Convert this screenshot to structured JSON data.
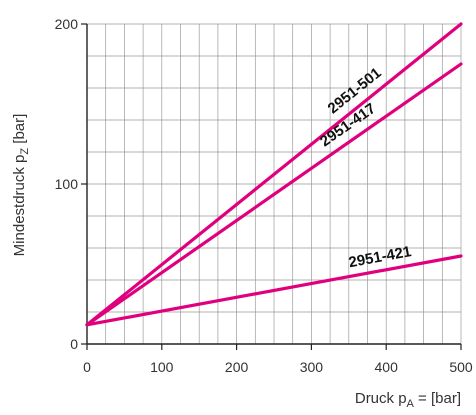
{
  "chart_data": {
    "type": "line",
    "xlabel": "Druck p_A = [bar]",
    "ylabel": "Mindestdruck p_Z [bar]",
    "xlabel_parts": [
      "Druck p",
      "A",
      " = [bar]"
    ],
    "ylabel_parts": [
      "Mindestdruck p",
      "Z",
      " [bar]"
    ],
    "xlim": [
      0,
      500
    ],
    "ylim": [
      0,
      200
    ],
    "x_ticks": [
      0,
      100,
      200,
      300,
      400,
      500
    ],
    "y_ticks": [
      0,
      100,
      200
    ],
    "grid": true,
    "grid_step_x": 25,
    "grid_step_y": 20,
    "line_color": "#e0007d",
    "series": [
      {
        "name": "2951-501",
        "x": [
          0,
          500
        ],
        "y": [
          12,
          200
        ]
      },
      {
        "name": "2951-417",
        "x": [
          0,
          500
        ],
        "y": [
          12,
          175
        ]
      },
      {
        "name": "2951-421",
        "x": [
          0,
          500
        ],
        "y": [
          12,
          55
        ]
      }
    ]
  }
}
